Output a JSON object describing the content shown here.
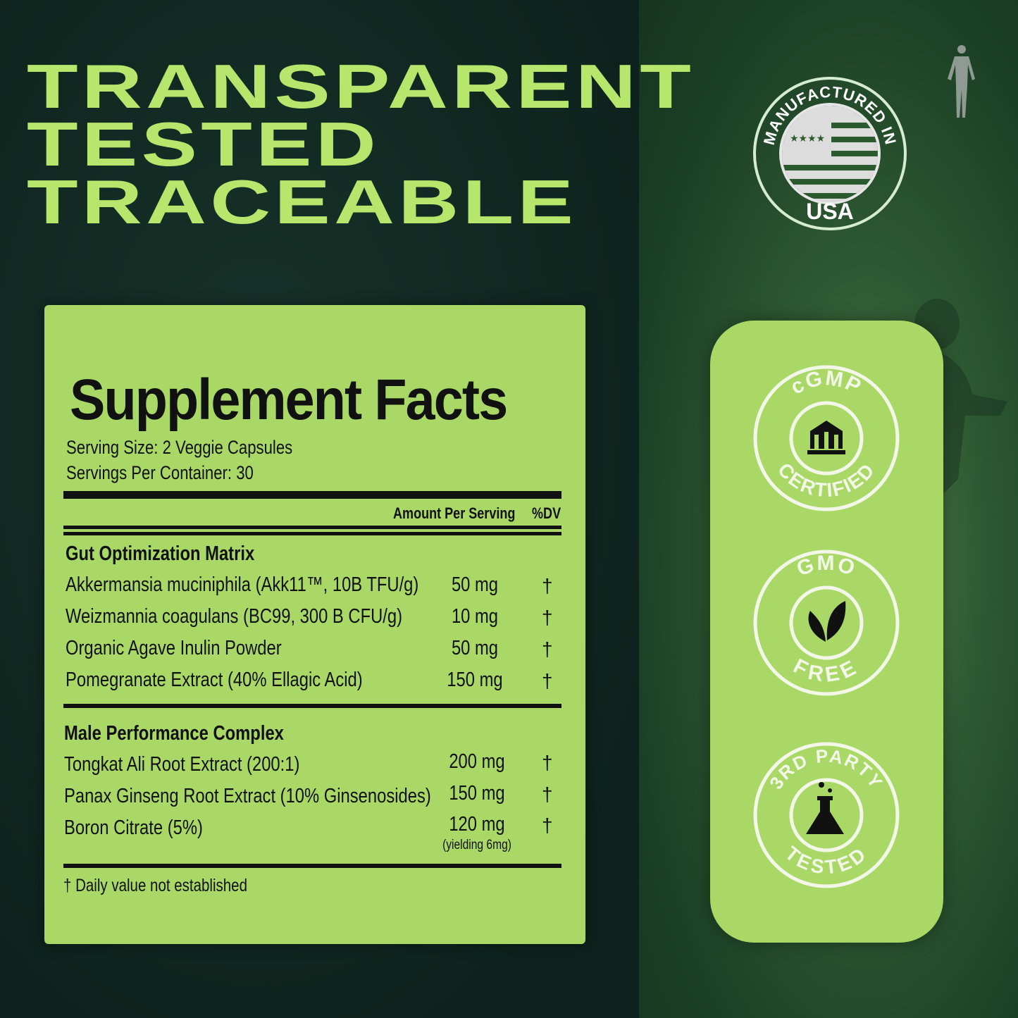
{
  "headline": [
    "TRANSPARENT",
    "TESTED",
    "TRACEABLE"
  ],
  "facts": {
    "title": "Supplement Facts",
    "serving_size": "Serving Size: 2 Veggie Capsules",
    "servings_per_container": "Servings Per Container: 30",
    "col_amount": "Amount Per Serving",
    "col_dv": "%DV",
    "sections": [
      {
        "name": "Gut Optimization Matrix",
        "items": [
          {
            "name": "Akkermansia muciniphila (Akk11™, 10B TFU/g)",
            "amount": "50 mg",
            "dv": "†"
          },
          {
            "name": "Weizmannia coagulans (BC99, 300 B CFU/g)",
            "amount": "10 mg",
            "dv": "†"
          },
          {
            "name": "Organic Agave Inulin Powder",
            "amount": "50 mg",
            "dv": "†"
          },
          {
            "name": "Pomegranate Extract (40% Ellagic Acid)",
            "amount": "150 mg",
            "dv": "†"
          }
        ]
      },
      {
        "name": "Male Performance Complex",
        "items": [
          {
            "name": "Tongkat Ali Root Extract (200:1)",
            "amount": "200 mg",
            "dv": "†"
          },
          {
            "name": "Panax Ginseng Root Extract (10% Ginsenosides)",
            "amount": "150 mg",
            "dv": "†"
          },
          {
            "name": "Boron Citrate (5%)",
            "amount": "120 mg",
            "note": "(yielding 6mg)",
            "dv": "†"
          }
        ]
      }
    ],
    "footnote": "† Daily value not established"
  },
  "usa_badge": {
    "top": "MANUFACTURED IN",
    "bottom": "USA",
    "icon": "us-flag-icon"
  },
  "badges": [
    {
      "top": "cGMP",
      "bottom": "CERTIFIED",
      "icon": "factory-icon"
    },
    {
      "top": "GMO",
      "bottom": "FREE",
      "icon": "leaf-icon"
    },
    {
      "top": "3RD PARTY",
      "bottom": "TESTED",
      "icon": "flask-icon"
    }
  ],
  "colors": {
    "accent": "#b6e66c",
    "panel": "#a9d867",
    "background": "#0f2620"
  }
}
